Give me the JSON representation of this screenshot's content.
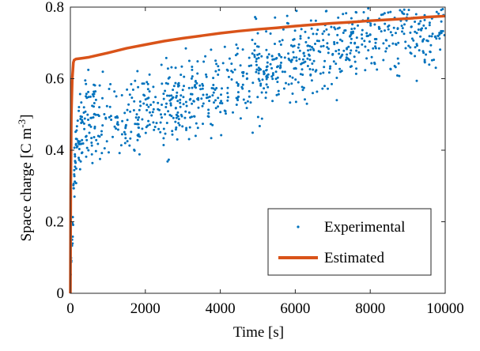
{
  "chart_data": {
    "type": "scatter",
    "xlabel": "Time [s]",
    "ylabel_main": "Space charge [C m",
    "ylabel_sup": "-3",
    "ylabel_close": "]",
    "xlim": [
      0,
      10000
    ],
    "ylim": [
      0,
      0.8
    ],
    "x_ticks": [
      0,
      2000,
      4000,
      6000,
      8000,
      10000
    ],
    "x_tick_labels": [
      "0",
      "2000",
      "4000",
      "6000",
      "8000",
      "10000"
    ],
    "y_ticks": [
      0,
      0.2,
      0.4,
      0.6,
      0.8
    ],
    "y_tick_labels": [
      "0",
      "0.2",
      "0.4",
      "0.6",
      "0.8"
    ],
    "grid": false,
    "legend_position": "bottom-right",
    "series": [
      {
        "name": "Experimental",
        "kind": "scatter",
        "color": "#0072BD",
        "point_count": 1000,
        "trend": {
          "early": [
            [
              0,
              0.02
            ],
            [
              50,
              0.15
            ],
            [
              100,
              0.3
            ],
            [
              150,
              0.4
            ],
            [
              200,
              0.44
            ],
            [
              300,
              0.47
            ],
            [
              500,
              0.49
            ]
          ],
          "main": [
            [
              500,
              0.49
            ],
            [
              1000,
              0.48
            ],
            [
              2000,
              0.51
            ],
            [
              3000,
              0.54
            ],
            [
              4000,
              0.58
            ],
            [
              5000,
              0.61
            ],
            [
              6000,
              0.65
            ],
            [
              7000,
              0.69
            ],
            [
              8000,
              0.72
            ],
            [
              9000,
              0.75
            ],
            [
              10000,
              0.76
            ]
          ],
          "spread": 0.06
        }
      },
      {
        "name": "Estimated",
        "kind": "line",
        "color": "#D95319",
        "x": [
          0,
          10,
          25,
          50,
          80,
          100,
          150,
          300,
          500,
          1000,
          1500,
          2000,
          2500,
          3000,
          3500,
          4000,
          4500,
          5000,
          5500,
          6000,
          6500,
          7000,
          7500,
          8000,
          8500,
          9000,
          9500,
          10000
        ],
        "y": [
          0.0,
          0.3,
          0.5,
          0.6,
          0.645,
          0.652,
          0.655,
          0.657,
          0.66,
          0.672,
          0.685,
          0.695,
          0.705,
          0.713,
          0.72,
          0.727,
          0.733,
          0.738,
          0.742,
          0.747,
          0.751,
          0.755,
          0.758,
          0.762,
          0.765,
          0.768,
          0.772,
          0.775
        ]
      }
    ]
  }
}
